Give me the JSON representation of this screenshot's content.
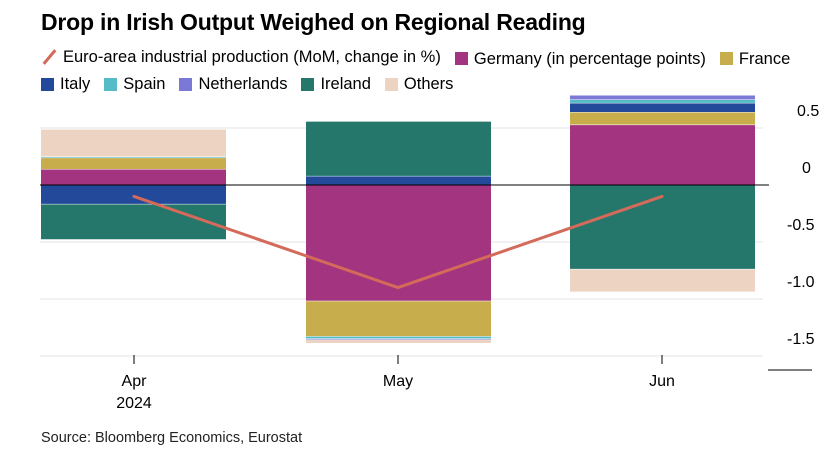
{
  "title": "Drop in Irish Output Weighed on Regional Reading",
  "source": "Source: Bloomberg Economics, Eurostat",
  "legend": [
    {
      "label": "Euro-area industrial production (MoM, change in %)",
      "color": "#d46a5a",
      "kind": "line"
    },
    {
      "label": "Germany (in percentage points)",
      "color": "#a33580",
      "kind": "box"
    },
    {
      "label": "France",
      "color": "#c7ad4b",
      "kind": "box"
    },
    {
      "label": "Italy",
      "color": "#234a9a",
      "kind": "box"
    },
    {
      "label": "Spain",
      "color": "#55bcc7",
      "kind": "box"
    },
    {
      "label": "Netherlands",
      "color": "#7a79d6",
      "kind": "box"
    },
    {
      "label": "Ireland",
      "color": "#25776b",
      "kind": "box"
    },
    {
      "label": "Others",
      "color": "#edd3c2",
      "kind": "box"
    }
  ],
  "chart_data": {
    "type": "bar",
    "stacked": true,
    "categories": [
      "Apr",
      "May",
      "Jun"
    ],
    "category_sublabels": [
      "2024",
      "",
      ""
    ],
    "ylim": [
      -1.5,
      0.75
    ],
    "yticks": [
      0.5,
      0,
      -0.5,
      -1.0,
      -1.5
    ],
    "ytick_labels": [
      "0.5",
      "0",
      "-0.5",
      "-1.0",
      "-1.5"
    ],
    "series": [
      {
        "name": "Germany",
        "color": "#a33580",
        "values": [
          0.14,
          -1.02,
          0.53
        ]
      },
      {
        "name": "France",
        "color": "#c7ad4b",
        "values": [
          0.1,
          -0.31,
          0.11
        ]
      },
      {
        "name": "Italy",
        "color": "#234a9a",
        "values": [
          -0.17,
          0.08,
          0.08
        ]
      },
      {
        "name": "Spain",
        "color": "#55bcc7",
        "values": [
          0.01,
          -0.02,
          0.03
        ]
      },
      {
        "name": "Netherlands",
        "color": "#7a79d6",
        "values": [
          0.0,
          -0.01,
          0.04
        ]
      },
      {
        "name": "Ireland",
        "color": "#25776b",
        "values": [
          -0.31,
          0.48,
          -0.74
        ]
      },
      {
        "name": "Others",
        "color": "#edd3c2",
        "values": [
          0.24,
          -0.03,
          -0.2
        ]
      }
    ],
    "line": {
      "name": "Euro-area industrial production (MoM, change in %)",
      "color": "#d46a5a",
      "values": [
        -0.1,
        -0.9,
        -0.1
      ]
    }
  }
}
